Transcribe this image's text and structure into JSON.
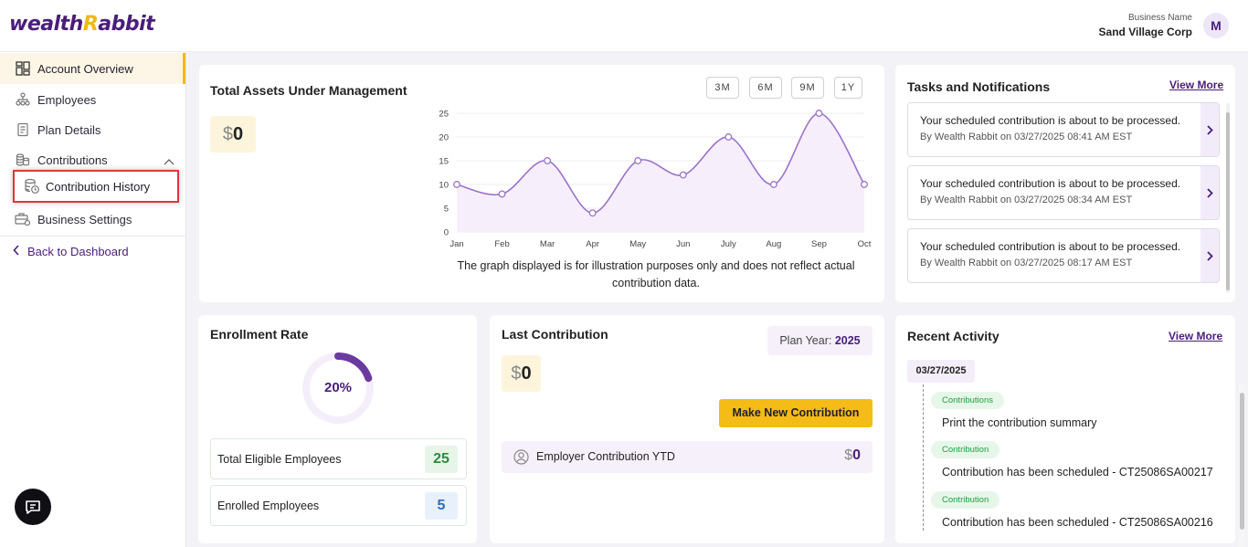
{
  "header": {
    "logo_part1": "wealth",
    "logo_part2": "R",
    "logo_part3": "abbit",
    "business_label": "Business Name",
    "business_name": "Sand Village Corp",
    "avatar_initial": "M"
  },
  "sidebar": {
    "items": [
      {
        "label": "Account Overview",
        "icon": "dashboard-grid-icon"
      },
      {
        "label": "Employees",
        "icon": "org-chart-icon"
      },
      {
        "label": "Plan Details",
        "icon": "document-icon"
      },
      {
        "label": "Contributions",
        "icon": "coins-stack-icon"
      },
      {
        "label": "Contribution History",
        "icon": "database-clock-icon"
      },
      {
        "label": "Business Settings",
        "icon": "briefcase-gear-icon"
      }
    ],
    "back_label": "Back to Dashboard"
  },
  "aum": {
    "title": "Total Assets Under Management",
    "currency": "$",
    "amount": "0",
    "periods": [
      "3M",
      "6M",
      "9M",
      "1Y"
    ],
    "note_line1": "The graph displayed is for illustration purposes only and does not reflect actual",
    "note_line2": "contribution data."
  },
  "chart_data": {
    "type": "line",
    "categories": [
      "Jan",
      "Feb",
      "Mar",
      "Apr",
      "May",
      "Jun",
      "July",
      "Aug",
      "Sep",
      "Oct"
    ],
    "series": [
      {
        "values": [
          10,
          8,
          15,
          4,
          15,
          12,
          20,
          10,
          25,
          10
        ]
      }
    ],
    "yticks": [
      0,
      5,
      10,
      15,
      20,
      25
    ],
    "ylim": [
      0,
      25
    ],
    "grid": true,
    "line_color": "#9b72c9",
    "fill_color": "#f6effb"
  },
  "tasks": {
    "title": "Tasks and Notifications",
    "view_more": "View More",
    "items": [
      {
        "text": "Your scheduled contribution is about to be processed.",
        "meta": "By Wealth Rabbit on 03/27/2025 08:41 AM EST"
      },
      {
        "text": "Your scheduled contribution is about to be processed.",
        "meta": "By Wealth Rabbit on 03/27/2025 08:34 AM EST"
      },
      {
        "text": "Your scheduled contribution is about to be processed.",
        "meta": "By Wealth Rabbit on 03/27/2025 08:17 AM EST"
      }
    ]
  },
  "enrollment": {
    "title": "Enrollment Rate",
    "rate_label": "20%",
    "rate_value": 0.2,
    "total_label": "Total Eligible Employees",
    "total_value": "25",
    "enrolled_label": "Enrolled Employees",
    "enrolled_value": "5"
  },
  "last_contribution": {
    "title": "Last Contribution",
    "plan_year_label": "Plan Year:",
    "plan_year": "2025",
    "currency": "$",
    "amount": "0",
    "make_button": "Make New Contribution",
    "ytd_label": "Employer Contribution YTD",
    "ytd_currency": "$",
    "ytd_amount": "0"
  },
  "recent_activity": {
    "title": "Recent Activity",
    "view_more": "View More",
    "date": "03/27/2025",
    "items": [
      {
        "badge": "Contributions",
        "text": "Print the contribution summary"
      },
      {
        "badge": "Contribution",
        "text": "Contribution has been scheduled - CT25086SA00217"
      },
      {
        "badge": "Contribution",
        "text": "Contribution has been scheduled - CT25086SA00216"
      }
    ]
  },
  "colors": {
    "brand_purple": "#4a1d7a",
    "brand_yellow": "#f0b819",
    "highlight_red": "#e0353b"
  }
}
